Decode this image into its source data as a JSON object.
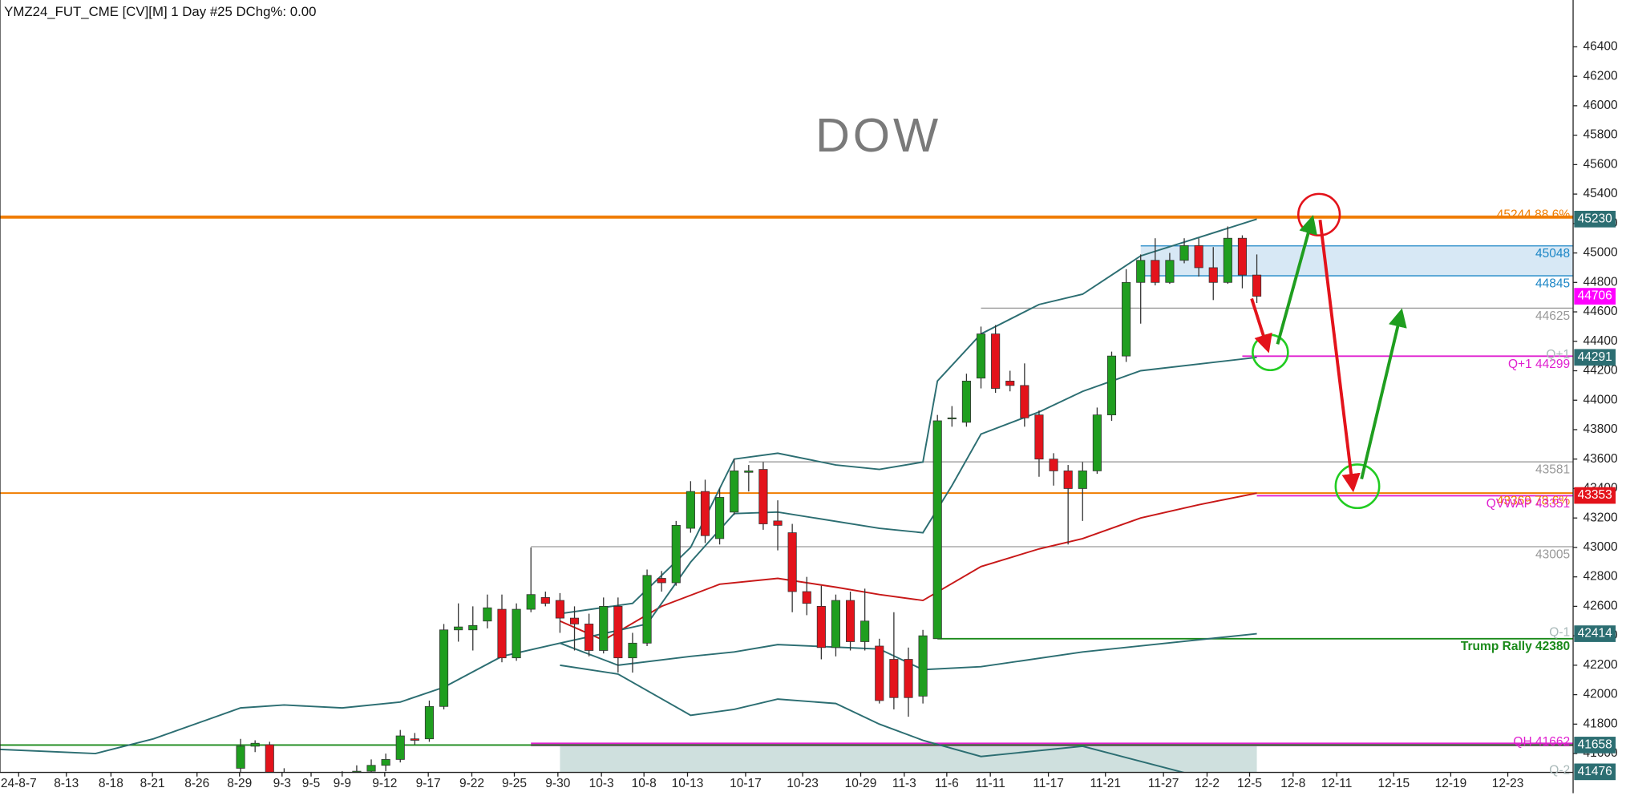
{
  "chart_data": {
    "type": "candlestick",
    "title": "YMZ24_FUT_CME [CV][M] 1 Day #25 DChg%: 0.00",
    "watermark": "DOW",
    "ylim": [
      41472,
      46718
    ],
    "yticks": [
      41600,
      41800,
      42000,
      42200,
      42400,
      42600,
      42800,
      43000,
      43200,
      43400,
      43600,
      43800,
      44000,
      44200,
      44400,
      44600,
      44800,
      45000,
      45200,
      45400,
      45600,
      45800,
      46000,
      46200,
      46400
    ],
    "x_labels": [
      "24-8-7",
      "8-13",
      "8-18",
      "8-21",
      "8-26",
      "8-29",
      "9-3",
      "9-5",
      "9-9",
      "9-12",
      "9-17",
      "9-22",
      "9-25",
      "9-30",
      "10-3",
      "10-8",
      "10-13",
      "10-17",
      "10-23",
      "10-29",
      "11-3",
      "11-6",
      "11-11",
      "11-17",
      "11-21",
      "11-27",
      "12-2",
      "12-5",
      "12-8",
      "12-11",
      "12-15",
      "12-19",
      "12-23"
    ],
    "up_color": "#1f9e1f",
    "down_color": "#e3131b",
    "open": [
      41500,
      41650,
      41660,
      41450,
      41420,
      41380,
      41350,
      41420,
      41450,
      41480,
      41520,
      41560,
      41700,
      41700,
      41920,
      42440,
      42440,
      42500,
      42580,
      42250,
      42580,
      42660,
      42640,
      42520,
      42480,
      42300,
      42600,
      42250,
      42350,
      42790,
      42760,
      43130,
      43380,
      43060,
      43240,
      43510,
      43530,
      43180,
      43100,
      42700,
      42600,
      42320,
      42640,
      42360,
      42330,
      42240,
      42240,
      41990,
      42380,
      43880,
      43850,
      44150,
      44450,
      44130,
      44100,
      43900,
      43600,
      43520,
      43400,
      43520,
      43900,
      44300,
      44800,
      44950,
      44800,
      44950,
      45050,
      44900,
      44800,
      45100,
      44850
    ],
    "high": [
      41700,
      41690,
      41680,
      41500,
      41460,
      41420,
      41450,
      41480,
      41520,
      41560,
      41600,
      41760,
      41740,
      41960,
      42480,
      42620,
      42600,
      42680,
      42680,
      42620,
      43000,
      42700,
      42690,
      42600,
      42550,
      42660,
      42660,
      42420,
      42850,
      42840,
      43180,
      43450,
      43460,
      43400,
      43600,
      43560,
      43580,
      43320,
      43160,
      42800,
      42740,
      42680,
      42700,
      42720,
      42380,
      42560,
      42320,
      42440,
      43900,
      43960,
      44180,
      44500,
      44510,
      44200,
      44250,
      43930,
      43640,
      43560,
      43580,
      43950,
      44330,
      44890,
      44990,
      45100,
      45000,
      45100,
      45100,
      45040,
      45180,
      45120,
      44990
    ],
    "low": [
      41450,
      41610,
      41420,
      41380,
      41350,
      41300,
      41300,
      41380,
      41400,
      41440,
      41480,
      41540,
      41660,
      41680,
      41900,
      42360,
      42300,
      42450,
      42220,
      42230,
      42560,
      42600,
      42420,
      42300,
      42260,
      42280,
      42150,
      42150,
      42330,
      42700,
      42740,
      43100,
      43030,
      43020,
      43220,
      43380,
      43120,
      42980,
      42560,
      42540,
      42240,
      42260,
      42300,
      42300,
      41940,
      41900,
      41850,
      41940,
      42380,
      43820,
      43820,
      44080,
      44050,
      44060,
      43820,
      43480,
      43420,
      43020,
      43180,
      43500,
      43860,
      44260,
      44520,
      44780,
      44790,
      44930,
      44840,
      44680,
      44790,
      44760,
      44660
    ],
    "close": [
      41650,
      41670,
      41450,
      41420,
      41380,
      41350,
      41420,
      41450,
      41480,
      41520,
      41560,
      41720,
      41690,
      41920,
      42440,
      42460,
      42470,
      42590,
      42250,
      42580,
      42680,
      42620,
      42520,
      42480,
      42300,
      42600,
      42250,
      42350,
      42810,
      42760,
      43150,
      43380,
      43080,
      43340,
      43520,
      43520,
      43160,
      43150,
      42700,
      42620,
      42320,
      42640,
      42360,
      42500,
      41960,
      41980,
      41980,
      42400,
      43860,
      43880,
      44130,
      44450,
      44080,
      44100,
      43880,
      43600,
      43520,
      43400,
      43520,
      43900,
      44300,
      44800,
      44950,
      44800,
      44950,
      45050,
      44900,
      44800,
      45100,
      44850,
      44706
    ],
    "overlays": [
      {
        "color": "#2c6e72",
        "points": [
          [
            -17,
            41630
          ],
          [
            -10,
            41600
          ],
          [
            -6,
            41700
          ],
          [
            0,
            41910
          ],
          [
            3,
            41930
          ],
          [
            7,
            41910
          ],
          [
            11,
            41950
          ],
          [
            14,
            42050
          ],
          [
            18,
            42260
          ],
          [
            22,
            42350
          ]
        ]
      },
      {
        "color": "#c81818",
        "points": [
          [
            22,
            42500
          ],
          [
            25,
            42370
          ],
          [
            29,
            42600
          ],
          [
            33,
            42750
          ],
          [
            37,
            42790
          ],
          [
            41,
            42730
          ],
          [
            44,
            42680
          ],
          [
            47,
            42640
          ],
          [
            51,
            42870
          ],
          [
            55,
            42990
          ],
          [
            58,
            43060
          ],
          [
            62,
            43200
          ],
          [
            66,
            43290
          ],
          [
            70,
            43369
          ]
        ]
      },
      {
        "color": "#2c6e72",
        "points": [
          [
            22,
            42550
          ],
          [
            27,
            42620
          ],
          [
            31,
            43000
          ],
          [
            34,
            43600
          ],
          [
            37,
            43640
          ],
          [
            41,
            43560
          ],
          [
            44,
            43530
          ],
          [
            47,
            43580
          ],
          [
            48,
            44130
          ],
          [
            51,
            44450
          ],
          [
            55,
            44650
          ],
          [
            58,
            44720
          ],
          [
            62,
            44980
          ],
          [
            70,
            45230
          ]
        ]
      },
      {
        "color": "#2c6e72",
        "points": [
          [
            22,
            42350
          ],
          [
            28,
            42480
          ],
          [
            31,
            42900
          ],
          [
            34,
            43230
          ],
          [
            37,
            43240
          ],
          [
            44,
            43130
          ],
          [
            47,
            43100
          ],
          [
            49,
            43420
          ],
          [
            51,
            43770
          ],
          [
            55,
            43920
          ],
          [
            58,
            44060
          ],
          [
            62,
            44200
          ],
          [
            70,
            44291
          ]
        ]
      },
      {
        "color": "#2c6e72",
        "points": [
          [
            22,
            42350
          ],
          [
            26,
            42200
          ],
          [
            31,
            42260
          ],
          [
            34,
            42290
          ],
          [
            37,
            42340
          ],
          [
            44,
            42310
          ],
          [
            47,
            42170
          ],
          [
            51,
            42190
          ],
          [
            58,
            42290
          ],
          [
            70,
            42414
          ]
        ]
      },
      {
        "color": "#2c6e72",
        "points": [
          [
            22,
            42200
          ],
          [
            26,
            42140
          ],
          [
            31,
            41860
          ],
          [
            34,
            41900
          ],
          [
            37,
            41970
          ],
          [
            41,
            41940
          ],
          [
            44,
            41800
          ],
          [
            47,
            41690
          ],
          [
            51,
            41580
          ],
          [
            58,
            41650
          ],
          [
            65,
            41470
          ]
        ]
      }
    ],
    "zones": [
      {
        "top": 45048,
        "bottom": 44845,
        "start": 62,
        "color": "#d7e8f5"
      },
      {
        "top": 41658,
        "bottom": 41472,
        "start": 22,
        "end": 70,
        "color": "#cfe0de"
      }
    ],
    "levels": [
      {
        "value": 45244,
        "label": "45244 88.6%",
        "color": "#f07d00",
        "width": 3
      },
      {
        "value": 45048,
        "color": "#1b86c6",
        "width": 1,
        "start": 62
      },
      {
        "value": 44845,
        "color": "#1b86c6",
        "width": 1,
        "start": 62
      },
      {
        "value": 44625,
        "color": "#999999",
        "width": 1,
        "start": 51
      },
      {
        "value": 44299,
        "label": "Q+1 44299",
        "color": "#e020d0",
        "width": 1.5,
        "start": 69
      },
      {
        "value": 43581,
        "color": "#999999",
        "width": 1,
        "start": 35
      },
      {
        "value": 43369,
        "label": "43369 78.6%",
        "color": "#f07d00",
        "width": 1.5
      },
      {
        "value": 43351,
        "label": "QVWAP 43351",
        "color": "#e020d0",
        "width": 1.5,
        "start": 70
      },
      {
        "value": 43005,
        "color": "#999999",
        "width": 1,
        "start": 20
      },
      {
        "value": 42380,
        "label": "Trump Rally 42380",
        "color": "#1a8a1a",
        "width": 1.5,
        "start": 48
      },
      {
        "value": 41662,
        "label": "QH 41662",
        "color": "#e020d0",
        "width": 3.5,
        "start": 20
      },
      {
        "value": 41658,
        "color": "#1a8a1a",
        "width": 1.5,
        "label_hidden": true
      }
    ],
    "quarter_tags": [
      {
        "label": "Q+1",
        "value": 44299
      },
      {
        "label": "Q-1",
        "value": 42414
      },
      {
        "label": "Q-2",
        "value": 41476
      }
    ],
    "price_tags": [
      {
        "value": 45230,
        "color": "#2c6e72"
      },
      {
        "value": 44706,
        "color": "#ff00ff"
      },
      {
        "value": 44291,
        "color": "#2c6e72"
      },
      {
        "value": 43353,
        "color": "#e3131b"
      },
      {
        "value": 42414,
        "color": "#2c6e72"
      },
      {
        "value": 41658,
        "color": "#2c6e72"
      },
      {
        "value": 41476,
        "color": "#2c6e72"
      }
    ]
  }
}
